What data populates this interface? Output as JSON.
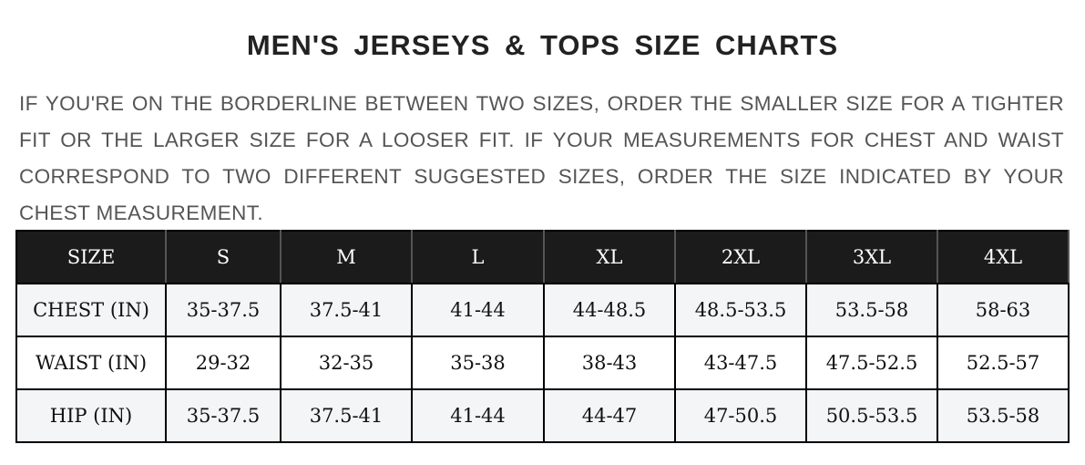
{
  "title": "MEN'S JERSEYS & TOPS SIZE CHARTS",
  "note": "IF YOU'RE ON THE BORDERLINE BETWEEN TWO SIZES, ORDER THE SMALLER SIZE FOR A TIGHTER FIT OR THE LARGER SIZE FOR A LOOSER FIT. IF YOUR MEASUREMENTS FOR CHEST AND WAIST CORRESPOND TO TWO DIFFERENT SUGGESTED SIZES, ORDER THE SIZE INDICATED BY YOUR CHEST MEASUREMENT.",
  "table": {
    "header": [
      "SIZE",
      "S",
      "M",
      "L",
      "XL",
      "2XL",
      "3XL",
      "4XL"
    ],
    "rows": [
      [
        "CHEST (IN)",
        "35-37.5",
        "37.5-41",
        "41-44",
        "44-48.5",
        "48.5-53.5",
        "53.5-58",
        "58-63"
      ],
      [
        "WAIST (IN)",
        "29-32",
        "32-35",
        "35-38",
        "38-43",
        "43-47.5",
        "47.5-52.5",
        "52.5-57"
      ],
      [
        "HIP (IN)",
        "35-37.5",
        "37.5-41",
        "41-44",
        "44-47",
        "47-50.5",
        "50.5-53.5",
        "53.5-58"
      ]
    ]
  }
}
